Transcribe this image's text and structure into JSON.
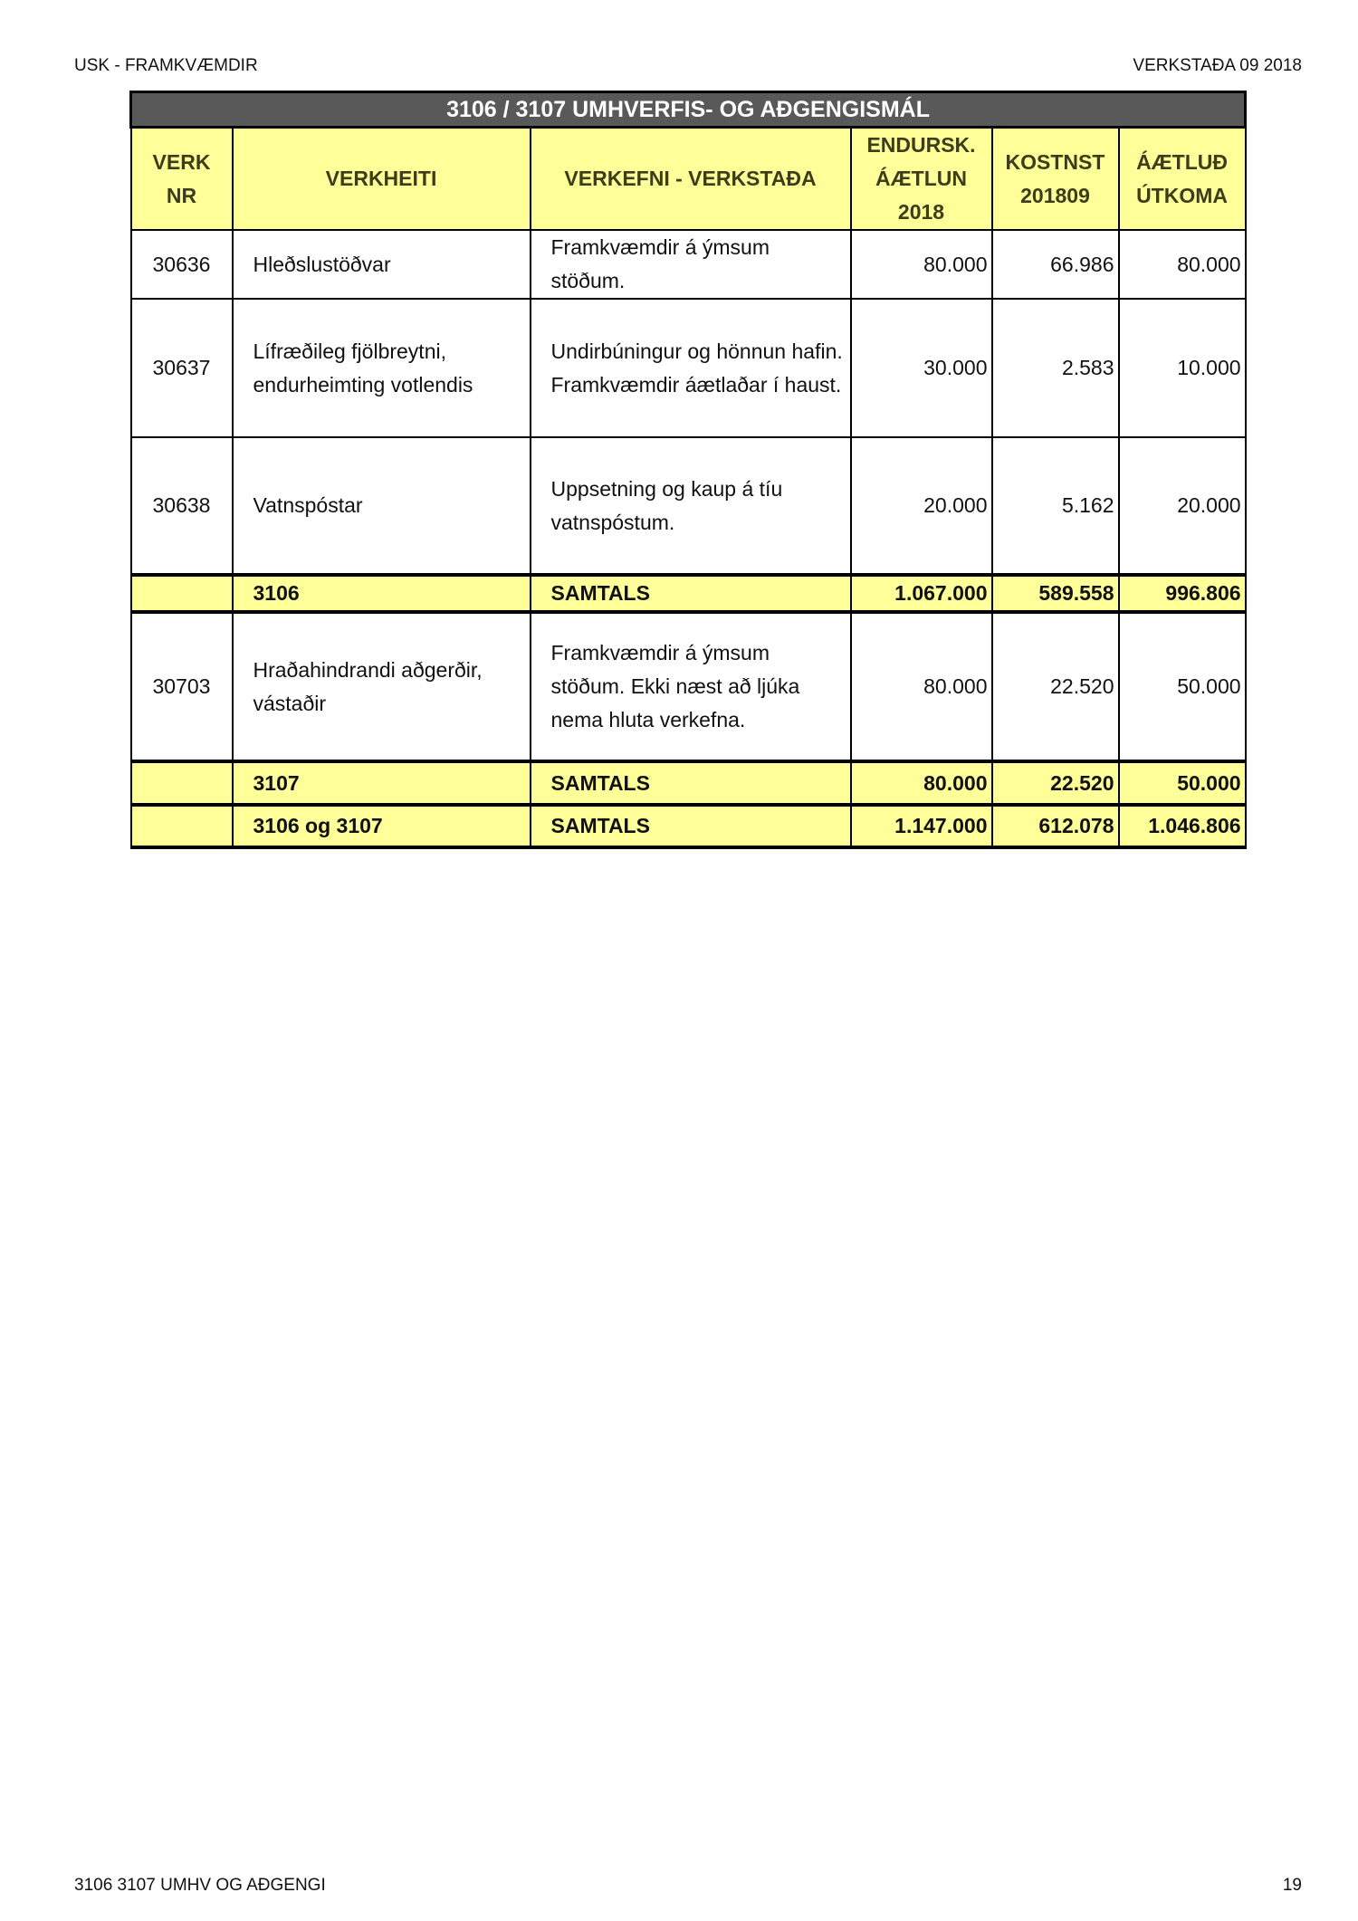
{
  "header": {
    "left": "USK - FRAMKVÆMDIR",
    "right": "VERKSTAÐA 09 2018"
  },
  "footer": {
    "left": "3106 3107 UMHV OG AÐGENGI",
    "right": "19"
  },
  "table": {
    "title": "3106 / 3107 UMHVERFIS- OG AÐGENGISMÁL",
    "columns": [
      {
        "l1": "VERK",
        "l2": "NR"
      },
      {
        "l1": "VERKHEITI"
      },
      {
        "l1": "VERKEFNI - VERKSTAÐA"
      },
      {
        "l1": "ENDURSK.",
        "l2": "ÁÆTLUN",
        "l3": "2018"
      },
      {
        "l1": "KOSTNST",
        "l2": "201809"
      },
      {
        "l1": "ÁÆTLUÐ",
        "l2": "ÚTKOMA"
      }
    ],
    "rows": [
      {
        "nr": "30636",
        "name": "Hleðslustöðvar",
        "status": "Framkvæmdir á ýmsum stöðum.",
        "plan": "80.000",
        "cost": "66.986",
        "outcome": "80.000"
      },
      {
        "nr": "30637",
        "name": "Lífræðileg fjölbreytni, endurheimting votlendis",
        "status": "Undirbúningur og hönnun hafin. Framkvæmdir áætlaðar í haust.",
        "plan": "30.000",
        "cost": "2.583",
        "outcome": "10.000"
      },
      {
        "nr": "30638",
        "name": "Vatnspóstar",
        "status": "Uppsetning og kaup á tíu vatnspóstum.",
        "plan": "20.000",
        "cost": "5.162",
        "outcome": "20.000"
      },
      {
        "total": true,
        "name": "3106",
        "status": "SAMTALS",
        "plan": "1.067.000",
        "cost": "589.558",
        "outcome": "996.806"
      },
      {
        "nr": "30703",
        "name": "Hraðahindrandi aðgerðir, vástaðir",
        "status": "Framkvæmdir á ýmsum stöðum. Ekki næst að ljúka nema hluta verkefna.",
        "plan": "80.000",
        "cost": "22.520",
        "outcome": "50.000"
      },
      {
        "total": true,
        "name": "3107",
        "status": "SAMTALS",
        "plan": "80.000",
        "cost": "22.520",
        "outcome": "50.000"
      },
      {
        "total": true,
        "name": "3106 og 3107",
        "status": "SAMTALS",
        "plan": "1.147.000",
        "cost": "612.078",
        "outcome": "1.046.806"
      }
    ]
  }
}
